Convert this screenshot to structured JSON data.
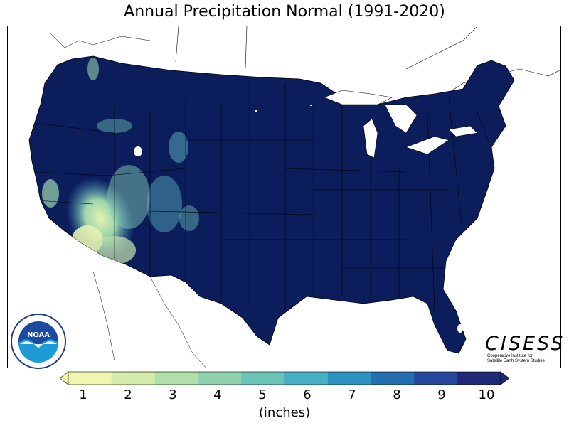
{
  "title": "Annual Precipitation Normal (1991-2020)",
  "colorbar": {
    "units_label": "(inches)",
    "ticks": [
      "1",
      "2",
      "3",
      "4",
      "5",
      "6",
      "7",
      "8",
      "9",
      "10"
    ],
    "colors": [
      "#f0f5b0",
      "#d4ecab",
      "#b0dfaa",
      "#8fd1ad",
      "#6cc3b8",
      "#48b0c4",
      "#2e91bf",
      "#246fb0",
      "#24479c",
      "#1e2a78"
    ],
    "extend": "both"
  },
  "map": {
    "region": "Contiguous United States",
    "dominant_color": "#0c1d5c",
    "outline_color": "#000000"
  },
  "logos": {
    "noaa": {
      "center_text": "NOAA",
      "ring_text_top": "NATIONAL OCEANIC AND ATMOSPHERIC ADMINISTRATION",
      "ring_text_bottom": "U.S. DEPARTMENT OF COMMERCE"
    },
    "cisess": {
      "name": "CISESS",
      "subtitle_line1": "Cooperative Institute for",
      "subtitle_line2": "Satellite Earth System Studies"
    }
  }
}
